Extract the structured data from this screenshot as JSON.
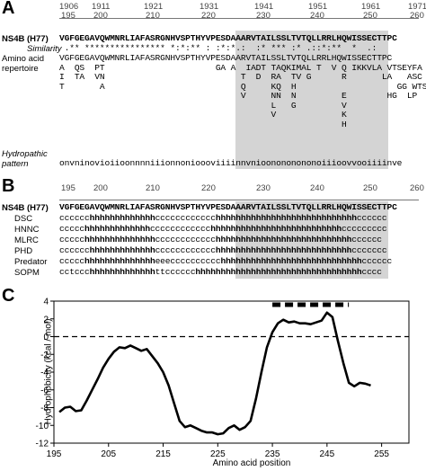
{
  "panelA": {
    "letter": "A",
    "top_numbers": [
      "1906",
      "1911",
      "1921",
      "1931",
      "1941",
      "1951",
      "1961",
      "1971"
    ],
    "bottom_numbers": [
      "195",
      "200",
      "210",
      "220",
      "230",
      "240",
      "250",
      "260"
    ],
    "seq_label": "NS4B (H77)",
    "seq": "VGFGEGAVQWMNRLIAFASRGNHVSPTHYVPESDAAARVTAILSSLTVTQLLRRLHQWISSECTTPC",
    "similarity_label": "Similarity",
    "similarity": " .** **************** *:*:** : :*:*.:  :* *** :* .::*:**  *  .: ",
    "repertoire_label": "Amino acid repertoire",
    "repertoire_rows": [
      "VGFGEGAVQWMNRLIAFASRGNHVSPTHYVPESDAARVTAILSSLTVTQLLRRLHQWISSECTTPC",
      "A  QS  PT                      GA A  IADT TAQKIMAL T  V Q IKKVLA VTSEYFA",
      "I  TA  VN                           T  D  RA  TV G      R       LA   ASC TAV",
      "T       A                           Q     KQ  H                    GG WTS IT",
      "                                    V     NN  N         E        HG  LP",
      "                                          L   G         V",
      "                                          V             K",
      "                                                        H"
    ],
    "hydro_label": "Hydropathic pattern",
    "hydro": "onvninovioiioonnnniiionnonioooviiiinnvnioonononononoiiioovvooiiiinve"
  },
  "panelB": {
    "letter": "B",
    "numbers": [
      "195",
      "200",
      "210",
      "220",
      "230",
      "240",
      "250",
      "260"
    ],
    "rows": [
      {
        "label": "NS4B (H77)",
        "seq": "VGFGEGAVQWMNRLIAFASRGNHVSPTHYVPESDAAARVTAILSSLTVTQLLRRLHQWISSECTTPC"
      },
      {
        "label": "DSC",
        "seq": "cccccchhhhhhhhhhhhhcccccccccccchhhhhhhhhhhhhhhhhhhhhhhhhhhhcccccc"
      },
      {
        "label": "HNNC",
        "seq": "ccccchhhhhhhhhhhhhcccccccccccchhhhhhhhhhhhhhhhhhhhhhhhhhccccccccc"
      },
      {
        "label": "MLRC",
        "seq": "ccccchhhhhhhhhhhhhhcccccccccccchhhhhhhhhhhhhhhhhhhhhhhhhhhcccccc"
      },
      {
        "label": "PHD",
        "seq": "cccccchhhhhhhhhhhhhcccccccccccchhhhhhhhhhhhhhhhhhhhhhhhhhhccccccc"
      },
      {
        "label": "Predator",
        "seq": "ccccchhhhhhhhhhhhhheeecccccccccchhhhhhhhhhhhhhhhhhhhhhhhhhhhcccccc"
      },
      {
        "label": "SOPM",
        "seq": "cctccchhhhhhhhhhhhhttcccccchhhhhhhhhhhhhhhhhhhhhhhhhhhhhhhhhcccc"
      }
    ]
  },
  "panelC": {
    "letter": "C",
    "chart_data": {
      "type": "line",
      "xlabel": "Amino acid position",
      "ylabel": "Hydrophobicity (kcal / mol)",
      "xlim": [
        195,
        260
      ],
      "ylim": [
        -12,
        4
      ],
      "xticks": [
        195,
        205,
        215,
        225,
        235,
        245,
        255
      ],
      "yticks": [
        4,
        2,
        0,
        -2,
        -4,
        -6,
        -8,
        -10,
        -12
      ],
      "baseline": 0,
      "highlight_segment": [
        235,
        249
      ],
      "x": [
        196,
        197,
        198,
        199,
        200,
        201,
        202,
        203,
        204,
        205,
        206,
        207,
        208,
        209,
        210,
        211,
        212,
        213,
        214,
        215,
        216,
        217,
        218,
        219,
        220,
        221,
        222,
        223,
        224,
        225,
        226,
        227,
        228,
        229,
        230,
        231,
        232,
        233,
        234,
        235,
        236,
        237,
        238,
        239,
        240,
        241,
        242,
        243,
        244,
        245,
        246,
        247,
        248,
        249,
        250,
        251,
        252,
        253
      ],
      "y": [
        -8.5,
        -8.0,
        -7.9,
        -8.4,
        -8.3,
        -7.2,
        -6.0,
        -4.8,
        -3.5,
        -2.5,
        -1.7,
        -1.2,
        -1.3,
        -1.0,
        -1.3,
        -1.6,
        -1.4,
        -2.2,
        -3.0,
        -4.0,
        -5.5,
        -7.5,
        -9.5,
        -10.2,
        -10.0,
        -10.3,
        -10.6,
        -10.8,
        -10.8,
        -11.0,
        -10.9,
        -10.3,
        -10.0,
        -10.5,
        -10.2,
        -9.5,
        -7.0,
        -4.0,
        -1.2,
        0.5,
        1.5,
        1.9,
        1.6,
        1.7,
        1.5,
        1.5,
        1.4,
        1.6,
        1.8,
        2.7,
        2.2,
        -0.5,
        -3.0,
        -5.2,
        -5.6,
        -5.2,
        -5.3,
        -5.5
      ]
    }
  }
}
